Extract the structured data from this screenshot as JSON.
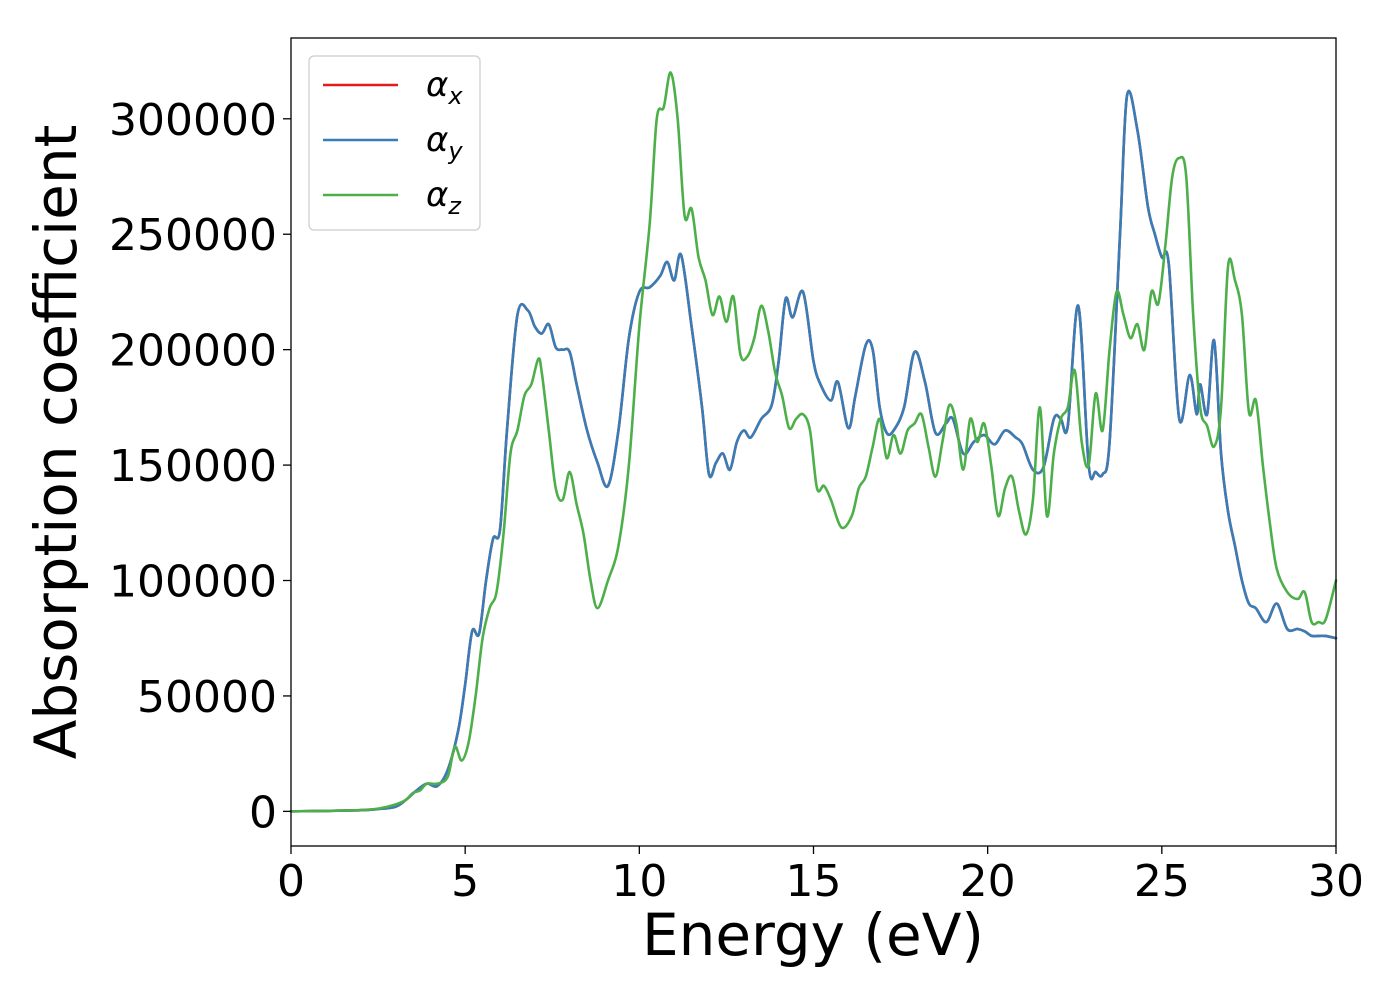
{
  "chart_data": {
    "type": "line",
    "title": "",
    "xlabel": "Energy (eV)",
    "ylabel": "Absorption coefficient",
    "xlim": [
      0,
      30
    ],
    "ylim": [
      -15000,
      335000
    ],
    "xticks": [
      0,
      5,
      10,
      15,
      20,
      25,
      30
    ],
    "yticks": [
      0,
      50000,
      100000,
      150000,
      200000,
      250000,
      300000
    ],
    "grid": false,
    "legend_position": "top-left",
    "series": [
      {
        "name": "α_x",
        "label_main": "α",
        "label_sub": "x",
        "color": "#e41a1c",
        "x": [
          0,
          1,
          2,
          2.5,
          3,
          3.3,
          3.6,
          3.9,
          4.2,
          4.5,
          4.8,
          5.0,
          5.2,
          5.4,
          5.6,
          5.8,
          6.0,
          6.2,
          6.5,
          6.8,
          7.0,
          7.2,
          7.4,
          7.6,
          7.8,
          8.0,
          8.2,
          8.5,
          8.8,
          9.1,
          9.4,
          9.7,
          10.0,
          10.3,
          10.6,
          10.8,
          11.0,
          11.2,
          11.5,
          11.8,
          12.0,
          12.2,
          12.4,
          12.6,
          12.8,
          13.0,
          13.2,
          13.5,
          13.8,
          14.0,
          14.2,
          14.4,
          14.7,
          15.0,
          15.2,
          15.5,
          15.7,
          16.0,
          16.2,
          16.5,
          16.7,
          16.9,
          17.1,
          17.3,
          17.6,
          17.9,
          18.2,
          18.5,
          18.8,
          19.0,
          19.3,
          19.6,
          19.9,
          20.2,
          20.5,
          20.8,
          21.0,
          21.3,
          21.6,
          21.9,
          22.1,
          22.3,
          22.6,
          22.9,
          23.1,
          23.3,
          23.5,
          23.8,
          24.0,
          24.3,
          24.6,
          24.8,
          25.0,
          25.2,
          25.5,
          25.8,
          26.0,
          26.1,
          26.3,
          26.5,
          26.7,
          26.9,
          27.1,
          27.3,
          27.5,
          27.7,
          28.0,
          28.3,
          28.6,
          28.9,
          29.1,
          29.3,
          29.5,
          29.7,
          30.0
        ],
        "y": [
          0,
          200,
          500,
          1000,
          2000,
          5000,
          9000,
          12000,
          11000,
          18000,
          35000,
          55000,
          78000,
          77000,
          100000,
          118000,
          122000,
          165000,
          215000,
          217000,
          210000,
          207000,
          211000,
          201000,
          200000,
          199000,
          185000,
          165000,
          151000,
          141000,
          165000,
          205000,
          225000,
          227000,
          232000,
          238000,
          230000,
          241000,
          210000,
          175000,
          146000,
          151000,
          155000,
          148000,
          160000,
          165000,
          162000,
          170000,
          176000,
          195000,
          222000,
          214000,
          225000,
          195000,
          185000,
          178000,
          186000,
          166000,
          180000,
          202000,
          200000,
          175000,
          164000,
          165000,
          175000,
          199000,
          186000,
          164000,
          168000,
          170000,
          155000,
          160000,
          163000,
          159000,
          165000,
          162000,
          159000,
          148000,
          149000,
          170000,
          170000,
          167000,
          219000,
          150000,
          147000,
          146000,
          160000,
          250000,
          310000,
          295000,
          262000,
          250000,
          240000,
          237000,
          170000,
          189000,
          172000,
          185000,
          172000,
          204000,
          155000,
          130000,
          115000,
          100000,
          90000,
          88000,
          82000,
          90000,
          79000,
          79000,
          78000,
          76000,
          76000,
          76000,
          75000
        ]
      },
      {
        "name": "α_y",
        "label_main": "α",
        "label_sub": "y",
        "color": "#377eb8",
        "x": [
          0,
          1,
          2,
          2.5,
          3,
          3.3,
          3.6,
          3.9,
          4.2,
          4.5,
          4.8,
          5.0,
          5.2,
          5.4,
          5.6,
          5.8,
          6.0,
          6.2,
          6.5,
          6.8,
          7.0,
          7.2,
          7.4,
          7.6,
          7.8,
          8.0,
          8.2,
          8.5,
          8.8,
          9.1,
          9.4,
          9.7,
          10.0,
          10.3,
          10.6,
          10.8,
          11.0,
          11.2,
          11.5,
          11.8,
          12.0,
          12.2,
          12.4,
          12.6,
          12.8,
          13.0,
          13.2,
          13.5,
          13.8,
          14.0,
          14.2,
          14.4,
          14.7,
          15.0,
          15.2,
          15.5,
          15.7,
          16.0,
          16.2,
          16.5,
          16.7,
          16.9,
          17.1,
          17.3,
          17.6,
          17.9,
          18.2,
          18.5,
          18.8,
          19.0,
          19.3,
          19.6,
          19.9,
          20.2,
          20.5,
          20.8,
          21.0,
          21.3,
          21.6,
          21.9,
          22.1,
          22.3,
          22.6,
          22.9,
          23.1,
          23.3,
          23.5,
          23.8,
          24.0,
          24.3,
          24.6,
          24.8,
          25.0,
          25.2,
          25.5,
          25.8,
          26.0,
          26.1,
          26.3,
          26.5,
          26.7,
          26.9,
          27.1,
          27.3,
          27.5,
          27.7,
          28.0,
          28.3,
          28.6,
          28.9,
          29.1,
          29.3,
          29.5,
          29.7,
          30.0
        ],
        "y": [
          0,
          200,
          500,
          1000,
          2000,
          5000,
          9000,
          12000,
          11000,
          18000,
          35000,
          55000,
          78000,
          77000,
          100000,
          118000,
          122000,
          165000,
          215000,
          217000,
          210000,
          207000,
          211000,
          201000,
          200000,
          199000,
          185000,
          165000,
          151000,
          141000,
          165000,
          205000,
          225000,
          227000,
          232000,
          238000,
          230000,
          241000,
          210000,
          175000,
          146000,
          151000,
          155000,
          148000,
          160000,
          165000,
          162000,
          170000,
          176000,
          195000,
          222000,
          214000,
          225000,
          195000,
          185000,
          178000,
          186000,
          166000,
          180000,
          202000,
          200000,
          175000,
          164000,
          165000,
          175000,
          199000,
          186000,
          164000,
          168000,
          170000,
          155000,
          160000,
          163000,
          159000,
          165000,
          162000,
          159000,
          148000,
          149000,
          170000,
          170000,
          167000,
          219000,
          150000,
          147000,
          146000,
          160000,
          250000,
          310000,
          295000,
          262000,
          250000,
          240000,
          237000,
          170000,
          189000,
          172000,
          185000,
          172000,
          204000,
          155000,
          130000,
          115000,
          100000,
          90000,
          88000,
          82000,
          90000,
          79000,
          79000,
          78000,
          76000,
          76000,
          76000,
          75000
        ]
      },
      {
        "name": "α_z",
        "label_main": "α",
        "label_sub": "z",
        "color": "#4daf4a",
        "x": [
          0,
          1,
          2,
          2.5,
          3,
          3.3,
          3.5,
          3.7,
          3.9,
          4.2,
          4.5,
          4.7,
          4.9,
          5.1,
          5.3,
          5.5,
          5.7,
          5.9,
          6.1,
          6.3,
          6.5,
          6.7,
          6.9,
          7.1,
          7.2,
          7.4,
          7.6,
          7.8,
          8.0,
          8.2,
          8.4,
          8.6,
          8.8,
          9.1,
          9.4,
          9.7,
          10.0,
          10.3,
          10.5,
          10.7,
          10.9,
          11.1,
          11.3,
          11.5,
          11.7,
          11.9,
          12.1,
          12.3,
          12.5,
          12.7,
          12.9,
          13.1,
          13.3,
          13.5,
          13.7,
          13.9,
          14.1,
          14.3,
          14.5,
          14.7,
          14.9,
          15.1,
          15.3,
          15.5,
          15.8,
          16.1,
          16.3,
          16.5,
          16.7,
          16.9,
          17.1,
          17.3,
          17.5,
          17.7,
          17.9,
          18.1,
          18.3,
          18.5,
          18.7,
          18.9,
          19.1,
          19.3,
          19.5,
          19.7,
          19.9,
          20.1,
          20.3,
          20.5,
          20.7,
          20.9,
          21.1,
          21.3,
          21.5,
          21.7,
          21.9,
          22.1,
          22.3,
          22.5,
          22.7,
          22.9,
          23.1,
          23.3,
          23.5,
          23.7,
          23.9,
          24.1,
          24.3,
          24.5,
          24.7,
          24.9,
          25.1,
          25.3,
          25.5,
          25.7,
          25.9,
          26.1,
          26.3,
          26.5,
          26.7,
          26.9,
          27.1,
          27.3,
          27.5,
          27.7,
          27.9,
          28.1,
          28.3,
          28.6,
          28.9,
          29.1,
          29.3,
          29.5,
          29.7,
          30.0
        ],
        "y": [
          0,
          200,
          600,
          1200,
          3000,
          5000,
          8000,
          9000,
          12000,
          12000,
          15000,
          28000,
          22000,
          30000,
          50000,
          75000,
          88000,
          95000,
          120000,
          155000,
          165000,
          180000,
          185000,
          196000,
          190000,
          165000,
          140000,
          135000,
          147000,
          133000,
          120000,
          100000,
          88000,
          100000,
          115000,
          150000,
          210000,
          255000,
          300000,
          305000,
          320000,
          300000,
          258000,
          261000,
          240000,
          230000,
          215000,
          223000,
          212000,
          223000,
          198000,
          197000,
          205000,
          219000,
          208000,
          190000,
          180000,
          166000,
          170000,
          172000,
          165000,
          140000,
          141000,
          135000,
          123000,
          128000,
          140000,
          145000,
          158000,
          170000,
          153000,
          163000,
          155000,
          165000,
          168000,
          172000,
          158000,
          145000,
          160000,
          176000,
          168000,
          148000,
          170000,
          160000,
          168000,
          150000,
          128000,
          140000,
          145000,
          130000,
          120000,
          135000,
          175000,
          128000,
          155000,
          170000,
          175000,
          191000,
          160000,
          150000,
          181000,
          165000,
          200000,
          225000,
          215000,
          205000,
          211000,
          200000,
          225000,
          220000,
          245000,
          275000,
          283000,
          275000,
          215000,
          175000,
          167000,
          158000,
          175000,
          236000,
          230000,
          215000,
          173000,
          178000,
          150000,
          125000,
          105000,
          95000,
          92000,
          95000,
          82000,
          82000,
          83000,
          100000
        ]
      }
    ]
  }
}
